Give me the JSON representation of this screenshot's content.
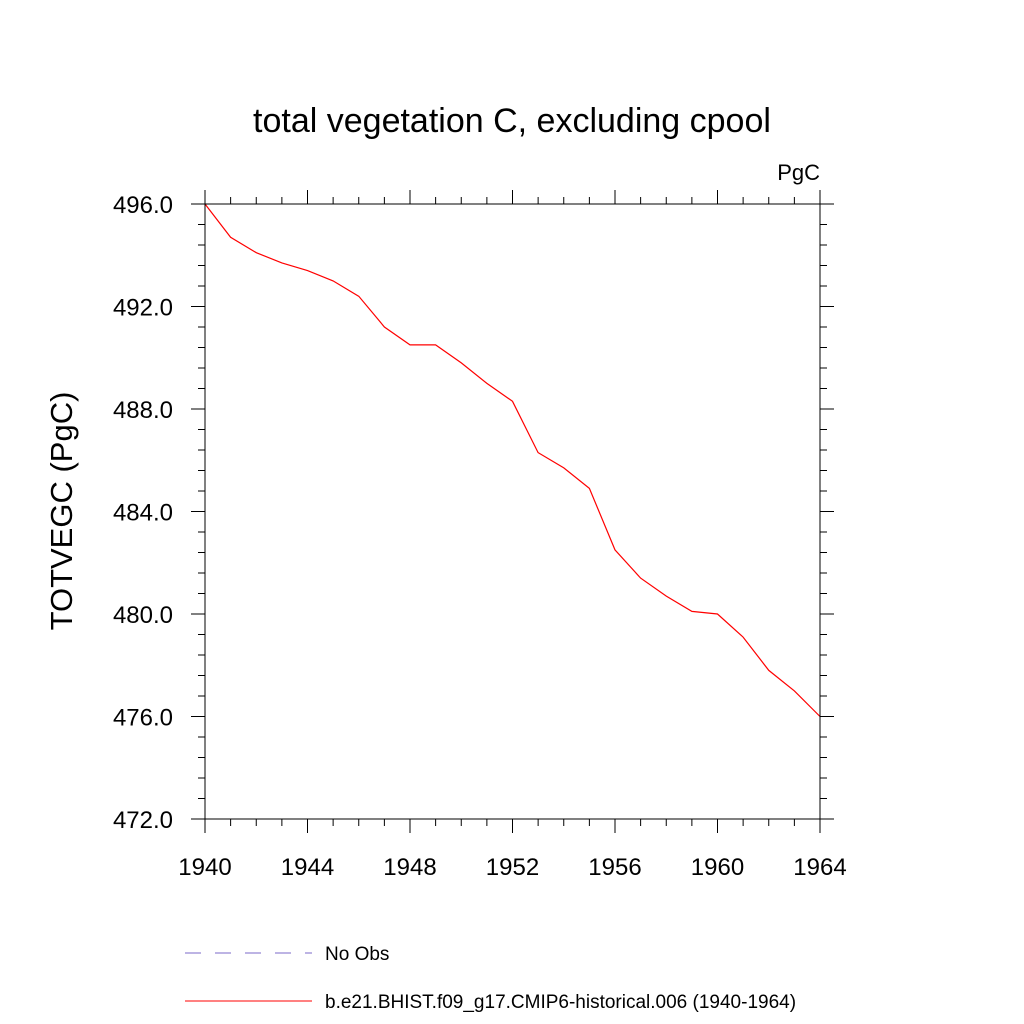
{
  "chart_data": {
    "type": "line",
    "title": "total vegetation C, excluding cpool",
    "units_label": "PgC",
    "ylabel": "TOTVEGC  (PgC)",
    "xlabel": "",
    "xlim": [
      1940,
      1964
    ],
    "ylim": [
      472,
      496
    ],
    "x_ticks": [
      1940,
      1944,
      1948,
      1952,
      1956,
      1960,
      1964
    ],
    "x_tick_labels": [
      "1940",
      "1944",
      "1948",
      "1952",
      "1956",
      "1960",
      "1964"
    ],
    "y_ticks": [
      472,
      476,
      480,
      484,
      488,
      492,
      496
    ],
    "y_tick_labels": [
      "472.0",
      "476.0",
      "480.0",
      "484.0",
      "488.0",
      "492.0",
      "496.0"
    ],
    "grid": false,
    "legend_position": "bottom",
    "series": [
      {
        "name": "b.e21.BHIST.f09_g17.CMIP6-historical.006 (1940-1964)",
        "color": "#ff0000",
        "style": "solid",
        "x": [
          1940,
          1941,
          1942,
          1943,
          1944,
          1945,
          1946,
          1947,
          1948,
          1949,
          1950,
          1951,
          1952,
          1953,
          1954,
          1955,
          1956,
          1957,
          1958,
          1959,
          1960,
          1961,
          1962,
          1963,
          1964
        ],
        "y": [
          496.0,
          494.7,
          494.1,
          493.7,
          493.4,
          493.0,
          492.4,
          491.2,
          490.5,
          490.5,
          489.8,
          489.0,
          488.3,
          486.3,
          485.7,
          484.9,
          482.5,
          481.4,
          480.7,
          480.1,
          480.0,
          479.1,
          477.8,
          477.0,
          476.0
        ]
      }
    ],
    "legend": [
      {
        "label": "No Obs",
        "color": "#7b68c8",
        "style": "dashed"
      },
      {
        "label": "b.e21.BHIST.f09_g17.CMIP6-historical.006 (1940-1964)",
        "color": "#ff0000",
        "style": "solid"
      }
    ]
  }
}
